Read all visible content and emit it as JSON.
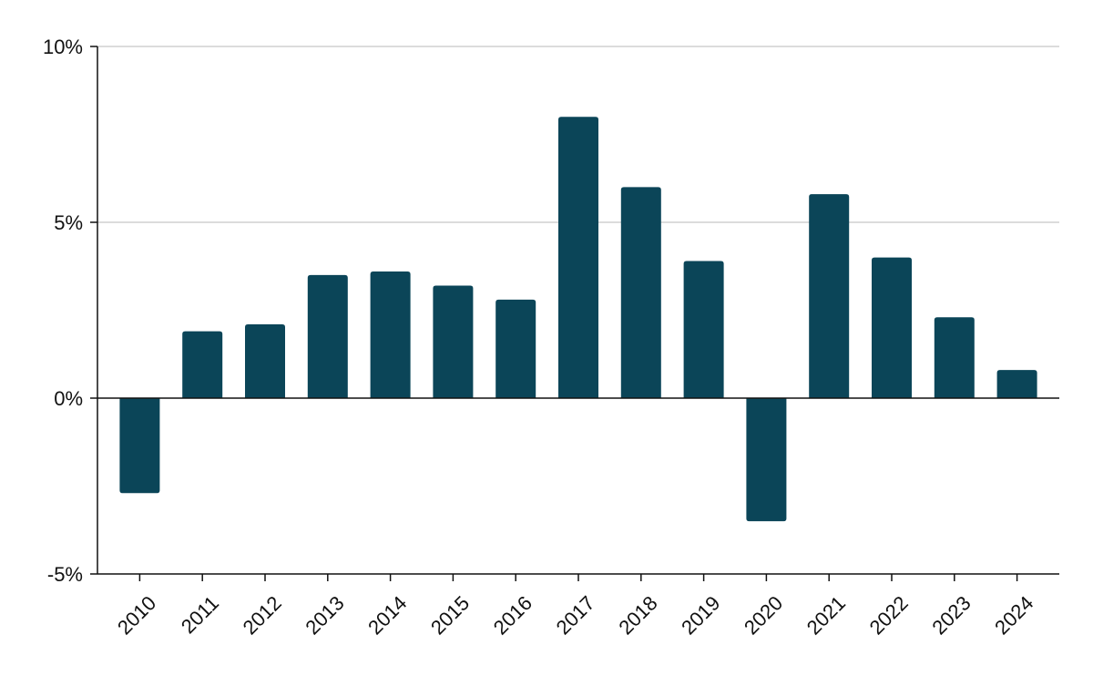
{
  "chart_data": {
    "type": "bar",
    "title": "",
    "xlabel": "",
    "ylabel": "",
    "categories": [
      "2010",
      "2011",
      "2012",
      "2013",
      "2014",
      "2015",
      "2016",
      "2017",
      "2018",
      "2019",
      "2020",
      "2021",
      "2022",
      "2023",
      "2024"
    ],
    "values": [
      -2.7,
      1.9,
      2.1,
      3.5,
      3.6,
      3.2,
      2.8,
      8.0,
      6.0,
      3.9,
      -3.5,
      5.8,
      4.0,
      2.3,
      0.8
    ],
    "ylim": [
      -5,
      10
    ],
    "yticks": [
      -5,
      0,
      5,
      10
    ],
    "ytick_labels": [
      "-5%",
      "0%",
      "5%",
      "10%"
    ],
    "grid": true,
    "legend": "none",
    "bar_color": "#0b4558"
  }
}
